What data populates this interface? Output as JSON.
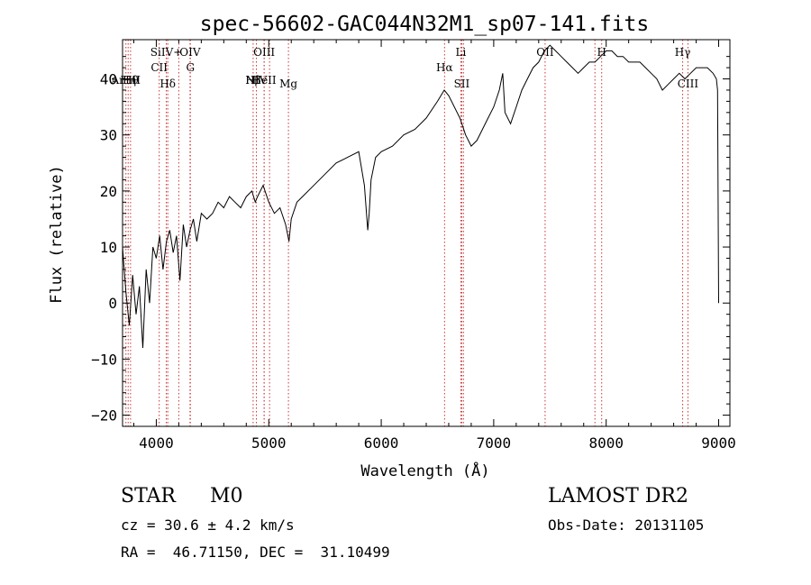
{
  "chart_data": {
    "type": "line",
    "title": "spec-56602-GAC044N32M1_sp07-141.fits",
    "xlabel": "Wavelength (Å)",
    "ylabel": "Flux (relative)",
    "xlim": [
      3700,
      9100
    ],
    "ylim": [
      -22,
      47
    ],
    "xticks": [
      4000,
      5000,
      6000,
      7000,
      8000,
      9000
    ],
    "yticks": [
      -20,
      -10,
      0,
      10,
      20,
      30,
      40
    ],
    "grid": false,
    "line_color": "#000000",
    "marker_color": "#cc3333",
    "spectrum": {
      "x": [
        3700,
        3730,
        3760,
        3790,
        3820,
        3850,
        3880,
        3910,
        3940,
        3970,
        4000,
        4030,
        4060,
        4090,
        4120,
        4150,
        4180,
        4210,
        4240,
        4270,
        4300,
        4330,
        4360,
        4400,
        4450,
        4500,
        4550,
        4600,
        4650,
        4700,
        4750,
        4800,
        4850,
        4880,
        4900,
        4950,
        5000,
        5050,
        5100,
        5150,
        5180,
        5200,
        5250,
        5300,
        5400,
        5500,
        5600,
        5700,
        5800,
        5850,
        5880,
        5893,
        5910,
        5950,
        6000,
        6100,
        6200,
        6300,
        6400,
        6500,
        6560,
        6600,
        6650,
        6700,
        6750,
        6800,
        6850,
        6900,
        6950,
        7000,
        7050,
        7080,
        7100,
        7150,
        7200,
        7250,
        7300,
        7350,
        7400,
        7450,
        7500,
        7550,
        7600,
        7650,
        7700,
        7750,
        7800,
        7850,
        7900,
        7950,
        8000,
        8050,
        8100,
        8150,
        8200,
        8250,
        8300,
        8350,
        8400,
        8450,
        8500,
        8550,
        8600,
        8650,
        8700,
        8750,
        8800,
        8850,
        8900,
        8950,
        8980,
        8990,
        9000
      ],
      "y": [
        10,
        2,
        -4,
        5,
        -2,
        3,
        -8,
        6,
        0,
        10,
        8,
        12,
        6,
        11,
        13,
        9,
        12,
        4,
        14,
        10,
        13,
        15,
        11,
        16,
        15,
        16,
        18,
        17,
        19,
        18,
        17,
        19,
        20,
        18,
        19,
        21,
        18,
        16,
        17,
        14,
        11,
        15,
        18,
        19,
        21,
        23,
        25,
        26,
        27,
        21,
        13,
        16,
        22,
        26,
        27,
        28,
        30,
        31,
        33,
        36,
        38,
        37,
        35,
        33,
        30,
        28,
        29,
        31,
        33,
        35,
        38,
        41,
        34,
        32,
        35,
        38,
        40,
        42,
        43,
        45,
        46,
        45,
        44,
        43,
        42,
        41,
        42,
        43,
        43,
        44,
        45,
        45,
        44,
        44,
        43,
        43,
        43,
        42,
        41,
        40,
        38,
        39,
        40,
        41,
        40,
        41,
        42,
        42,
        42,
        41,
        40,
        38,
        0
      ]
    },
    "lines": [
      {
        "x": 3730,
        "label": "Ar III",
        "row": "mid"
      },
      {
        "x": 3750,
        "label": "Hη",
        "row": "mid"
      },
      {
        "x": 3771,
        "label": "Hθ",
        "row": "mid"
      },
      {
        "x": 4026,
        "label": "CII",
        "row": "low"
      },
      {
        "x": 4102,
        "label": "Hδ",
        "row": "bot"
      },
      {
        "x": 4089,
        "label": "SiIV+",
        "row": "top"
      },
      {
        "x": 4200,
        "label": "",
        "row": "none"
      },
      {
        "x": 4303,
        "label": "G",
        "row": "low"
      },
      {
        "x": 4300,
        "label": "OIV",
        "row": "top"
      },
      {
        "x": 4861,
        "label": "Hβ",
        "row": "mid"
      },
      {
        "x": 4890,
        "label": "NIV",
        "row": "mid"
      },
      {
        "x": 4959,
        "label": "OIII",
        "row": "top"
      },
      {
        "x": 4959,
        "label": "HeII",
        "row": "mid"
      },
      {
        "x": 5007,
        "label": "",
        "row": "none"
      },
      {
        "x": 5175,
        "label": "Mg",
        "row": "bot"
      },
      {
        "x": 6563,
        "label": "Hα",
        "row": "low"
      },
      {
        "x": 6708,
        "label": "Li",
        "row": "top"
      },
      {
        "x": 6716,
        "label": "SII",
        "row": "bot"
      },
      {
        "x": 6731,
        "label": "",
        "row": "none"
      },
      {
        "x": 7457,
        "label": "OII",
        "row": "top"
      },
      {
        "x": 7900,
        "label": "",
        "row": "none"
      },
      {
        "x": 7960,
        "label": "H",
        "row": "top"
      },
      {
        "x": 8680,
        "label": "Hγ",
        "row": "top"
      },
      {
        "x": 8727,
        "label": "CIII",
        "row": "bot"
      }
    ]
  },
  "info": {
    "class": "STAR",
    "subclass": "M0",
    "survey": "LAMOST DR2",
    "cz": "cz = 30.6 ± 4.2 km/s",
    "obsdate": "Obs-Date: 20131105",
    "radec": "RA =  46.71150, DEC =  31.10499"
  }
}
